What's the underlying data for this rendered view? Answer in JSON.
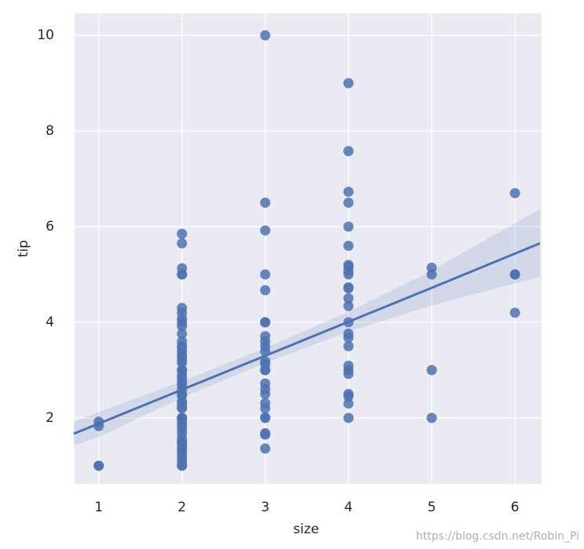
{
  "chart_data": {
    "type": "scatter",
    "x_label": "size",
    "y_label": "tip",
    "xlim": [
      0.71,
      6.32
    ],
    "ylim": [
      0.62,
      10.46
    ],
    "xticks": [
      1,
      2,
      3,
      4,
      5,
      6
    ],
    "yticks": [
      2,
      4,
      6,
      8,
      10
    ],
    "grid": true,
    "series": [
      {
        "color": "#4c72b0",
        "x": [
          1,
          1,
          1,
          1,
          2,
          2,
          2,
          2,
          2,
          2,
          2,
          2,
          2,
          2,
          2,
          2,
          2,
          2,
          2,
          2,
          2,
          2,
          2,
          2,
          2,
          2,
          2,
          2,
          2,
          2,
          2,
          2,
          2,
          2,
          2,
          2,
          2,
          2,
          2,
          2,
          2,
          2,
          2,
          2,
          2,
          2,
          2,
          2,
          2,
          2,
          2,
          2,
          2,
          2,
          3,
          3,
          3,
          3,
          3,
          3,
          3,
          3,
          3,
          3,
          3,
          3,
          3,
          3,
          3,
          3,
          3,
          3,
          3,
          3,
          3,
          3,
          3,
          3,
          3,
          4,
          4,
          4,
          4,
          4,
          4,
          4,
          4,
          4,
          4,
          4,
          4,
          4,
          4,
          4,
          4,
          4,
          4,
          4,
          4,
          4,
          4,
          4,
          4,
          4,
          5,
          5,
          5,
          5,
          6,
          6,
          6,
          6
        ],
        "values": [
          1.92,
          1.83,
          1.0,
          1.0,
          5.85,
          5.65,
          5.13,
          5.0,
          5.0,
          4.3,
          4.2,
          4.08,
          4.0,
          3.92,
          3.76,
          3.6,
          3.5,
          3.48,
          3.4,
          3.31,
          3.27,
          3.2,
          3.15,
          3.0,
          3.0,
          2.9,
          2.83,
          2.75,
          2.7,
          2.6,
          2.5,
          2.47,
          2.34,
          2.31,
          2.23,
          2.2,
          2.0,
          2.0,
          1.98,
          1.9,
          1.83,
          1.76,
          1.67,
          1.57,
          1.5,
          1.48,
          1.44,
          1.36,
          1.32,
          1.25,
          1.17,
          1.1,
          1.01,
          1.0,
          10.0,
          6.5,
          5.92,
          5.0,
          4.67,
          4.0,
          4.0,
          3.71,
          3.6,
          3.5,
          3.39,
          3.18,
          3.12,
          3.0,
          3.0,
          2.72,
          2.6,
          2.5,
          2.31,
          2.2,
          2.01,
          2.0,
          1.68,
          1.65,
          1.36,
          9.0,
          7.58,
          6.73,
          6.5,
          6.0,
          5.6,
          5.2,
          5.16,
          5.07,
          5.0,
          4.73,
          4.71,
          4.5,
          4.34,
          4.0,
          3.76,
          3.68,
          3.5,
          3.09,
          3.0,
          2.92,
          2.5,
          2.45,
          2.3,
          2.0,
          5.14,
          5.0,
          3.0,
          2.0,
          6.7,
          5.0,
          5.0,
          4.2
        ]
      }
    ],
    "regression": {
      "color": "#4c72b0",
      "x": [
        0.7,
        1,
        2,
        3,
        4,
        5,
        6.3
      ],
      "values": [
        1.67,
        1.88,
        2.59,
        3.3,
        4.01,
        4.72,
        5.65
      ],
      "ci_lower": [
        1.42,
        1.6,
        2.42,
        3.15,
        3.8,
        4.35,
        4.95
      ],
      "ci_upper": [
        1.93,
        2.12,
        2.77,
        3.46,
        4.22,
        5.08,
        6.37
      ]
    },
    "watermark": "https://blog.csdn.net/Robin_Pi"
  }
}
